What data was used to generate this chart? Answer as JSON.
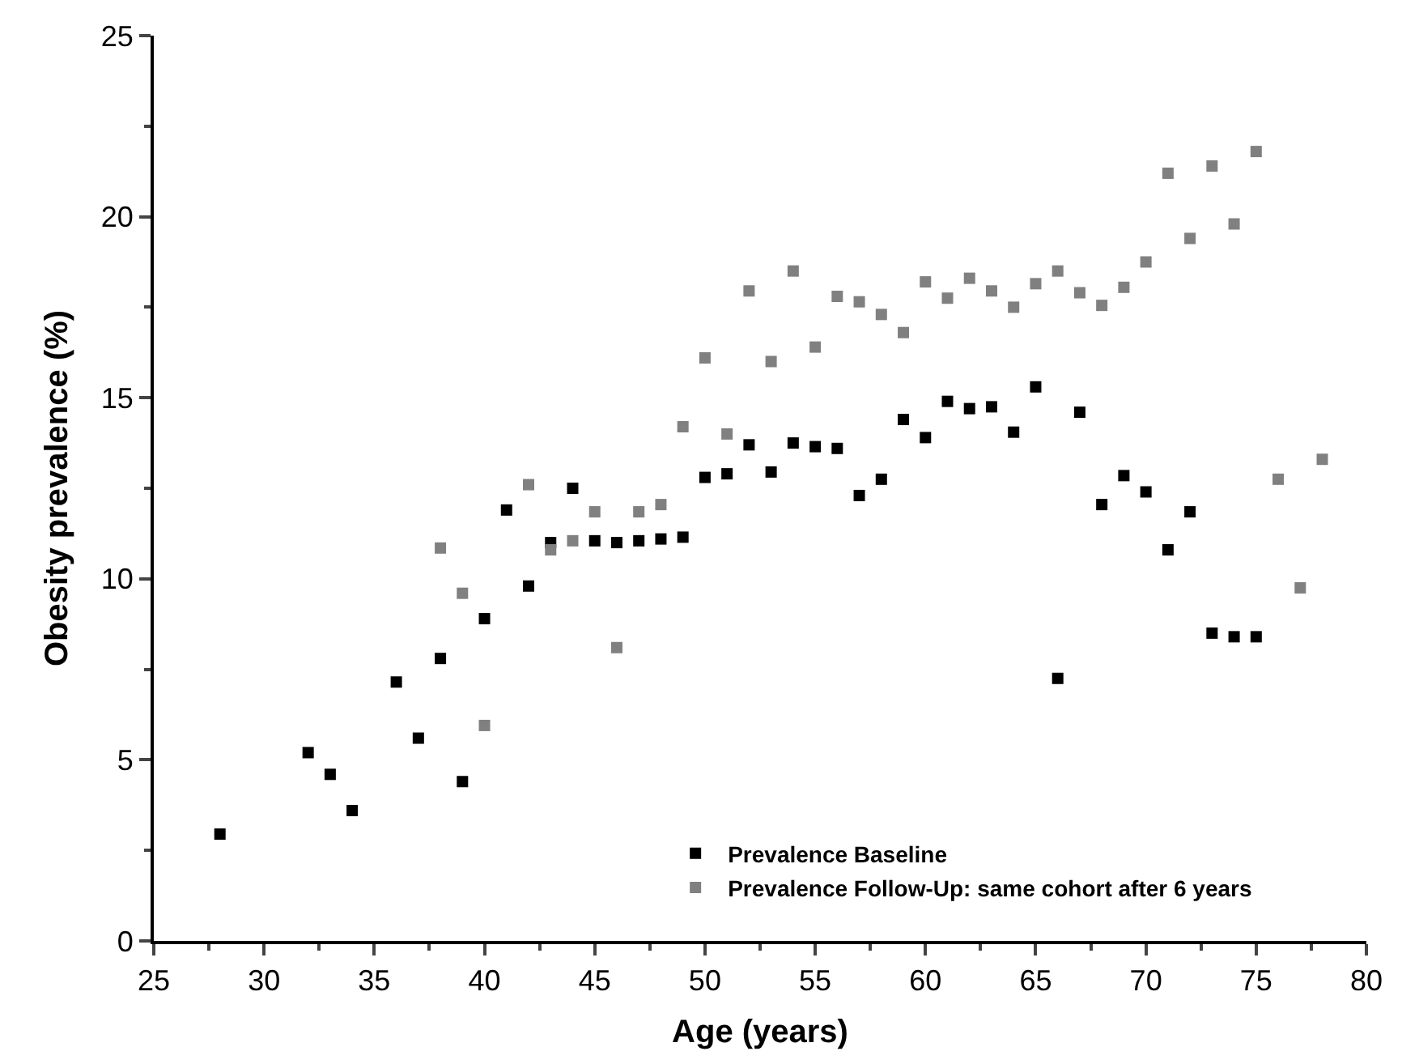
{
  "chart_data": {
    "type": "scatter",
    "xlabel": "Age (years)",
    "ylabel": "Obesity prevalence (%)",
    "xlim": [
      25,
      80
    ],
    "xticks": [
      25,
      30,
      35,
      40,
      45,
      50,
      55,
      60,
      65,
      70,
      75,
      80
    ],
    "ylim": [
      0,
      25
    ],
    "yticks": [
      0,
      5,
      10,
      15,
      20,
      25
    ],
    "grid": false,
    "legend": "bottom",
    "marker": "square",
    "series": [
      {
        "name": "Prevalence Baseline",
        "color": "#000000",
        "x": [
          28,
          32,
          33,
          34,
          36,
          37,
          38,
          39,
          40,
          41,
          42,
          43,
          44,
          45,
          46,
          47,
          48,
          49,
          50,
          51,
          52,
          53,
          54,
          55,
          56,
          57,
          58,
          59,
          60,
          61,
          62,
          63,
          64,
          65,
          66,
          67,
          68,
          69,
          70,
          71,
          72,
          73,
          74,
          75
        ],
        "values": [
          2.95,
          5.2,
          4.6,
          3.6,
          7.15,
          5.6,
          7.8,
          4.4,
          8.9,
          11.9,
          9.8,
          11.0,
          12.5,
          11.05,
          11.0,
          11.05,
          11.1,
          11.15,
          12.8,
          12.9,
          13.7,
          12.95,
          13.75,
          13.65,
          13.6,
          12.3,
          12.75,
          14.4,
          13.9,
          14.9,
          14.7,
          14.75,
          14.05,
          15.3,
          7.25,
          14.6,
          12.05,
          12.85,
          12.4,
          10.8,
          11.85,
          8.5,
          8.4,
          8.4
        ]
      },
      {
        "name": "Prevalence Follow-Up: same cohort after 6 years",
        "color": "#808080",
        "x": [
          38,
          39,
          40,
          42,
          43,
          44,
          45,
          46,
          47,
          48,
          49,
          50,
          51,
          52,
          53,
          54,
          55,
          56,
          57,
          58,
          59,
          60,
          61,
          62,
          63,
          64,
          65,
          66,
          67,
          68,
          69,
          70,
          71,
          72,
          73,
          74,
          75,
          76,
          77,
          78
        ],
        "values": [
          10.85,
          9.6,
          5.95,
          12.6,
          10.8,
          11.05,
          11.85,
          8.1,
          11.85,
          12.05,
          14.2,
          16.1,
          14.0,
          17.95,
          16.0,
          18.5,
          16.4,
          17.8,
          17.65,
          17.3,
          16.8,
          18.2,
          17.75,
          18.3,
          17.95,
          17.5,
          18.15,
          18.5,
          17.9,
          17.55,
          18.05,
          18.75,
          21.2,
          19.4,
          21.4,
          19.8,
          21.8,
          12.75,
          9.75,
          13.3
        ]
      }
    ]
  }
}
